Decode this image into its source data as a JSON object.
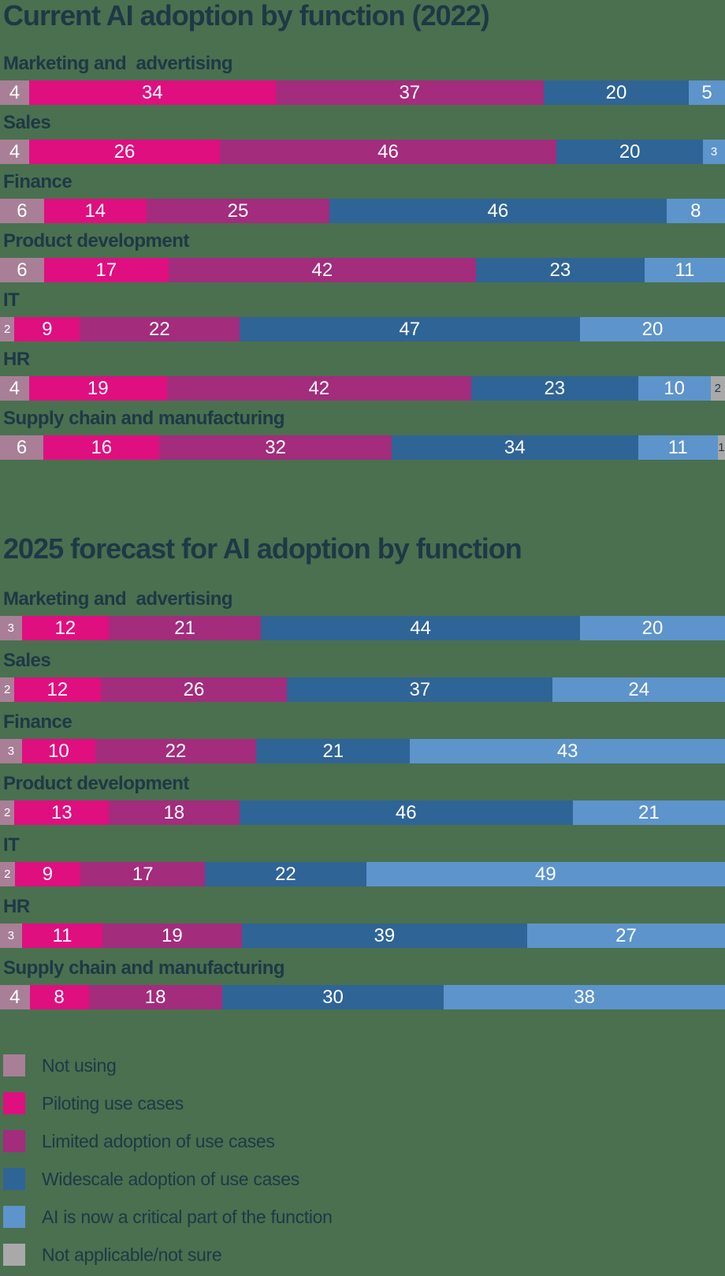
{
  "colors": {
    "background": "#4a7050",
    "text": "#1f3845",
    "bar_value_text": "#ffffff",
    "categories": {
      "not_using": "#a87f96",
      "piloting": "#df0f80",
      "limited": "#a32c7d",
      "widescale": "#2f6496",
      "critical": "#5d94cb",
      "na": "#a9a9a9"
    }
  },
  "legend": [
    {
      "key": "not_using",
      "label": "Not using"
    },
    {
      "key": "piloting",
      "label": "Piloting use cases"
    },
    {
      "key": "limited",
      "label": "Limited adoption of use cases"
    },
    {
      "key": "widescale",
      "label": "Widescale adoption of use cases"
    },
    {
      "key": "critical",
      "label": "AI is now a critical part of the function"
    },
    {
      "key": "na",
      "label": "Not applicable/not sure"
    }
  ],
  "chart_data": [
    {
      "type": "bar",
      "stacked": true,
      "orientation": "horizontal",
      "units": "percent",
      "title": "Current AI adoption by function (2022)",
      "grid": false,
      "axis_labels_shown": false,
      "value_labels": "inside-segments",
      "categories": [
        "Marketing and  advertising",
        "Sales",
        "Finance",
        "Product development",
        "IT",
        "HR",
        "Supply chain and manufacturing"
      ],
      "series": [
        {
          "key": "not_using",
          "name": "Not using",
          "values": [
            4,
            4,
            6,
            6,
            2,
            4,
            6
          ]
        },
        {
          "key": "piloting",
          "name": "Piloting use cases",
          "values": [
            34,
            26,
            14,
            17,
            9,
            19,
            16
          ]
        },
        {
          "key": "limited",
          "name": "Limited adoption of use cases",
          "values": [
            37,
            46,
            25,
            42,
            22,
            42,
            32
          ]
        },
        {
          "key": "widescale",
          "name": "Widescale adoption of use cases",
          "values": [
            20,
            20,
            46,
            23,
            47,
            23,
            34
          ]
        },
        {
          "key": "critical",
          "name": "AI is now a critical part of the function",
          "values": [
            5,
            3,
            8,
            11,
            20,
            10,
            11
          ]
        },
        {
          "key": "na",
          "name": "Not applicable/not sure",
          "values": [
            0,
            0,
            0,
            0,
            0,
            2,
            1
          ]
        }
      ]
    },
    {
      "type": "bar",
      "stacked": true,
      "orientation": "horizontal",
      "units": "percent",
      "title": "2025 forecast for AI adoption by function",
      "grid": false,
      "axis_labels_shown": false,
      "value_labels": "inside-segments",
      "categories": [
        "Marketing and  advertising",
        "Sales",
        "Finance",
        "Product development",
        "IT",
        "HR",
        "Supply chain and manufacturing"
      ],
      "series": [
        {
          "key": "not_using",
          "name": "Not using",
          "values": [
            3,
            2,
            3,
            2,
            2,
            3,
            4
          ]
        },
        {
          "key": "piloting",
          "name": "Piloting use cases",
          "values": [
            12,
            12,
            10,
            13,
            9,
            11,
            8
          ]
        },
        {
          "key": "limited",
          "name": "Limited adoption of use cases",
          "values": [
            21,
            26,
            22,
            18,
            17,
            19,
            18
          ]
        },
        {
          "key": "widescale",
          "name": "Widescale adoption of use cases",
          "values": [
            44,
            37,
            21,
            46,
            22,
            39,
            30
          ]
        },
        {
          "key": "critical",
          "name": "AI is now a critical part of the function",
          "values": [
            20,
            24,
            43,
            21,
            49,
            27,
            38
          ]
        },
        {
          "key": "na",
          "name": "Not applicable/not sure",
          "values": [
            0,
            0,
            0,
            0,
            0,
            0,
            0
          ]
        }
      ]
    }
  ]
}
